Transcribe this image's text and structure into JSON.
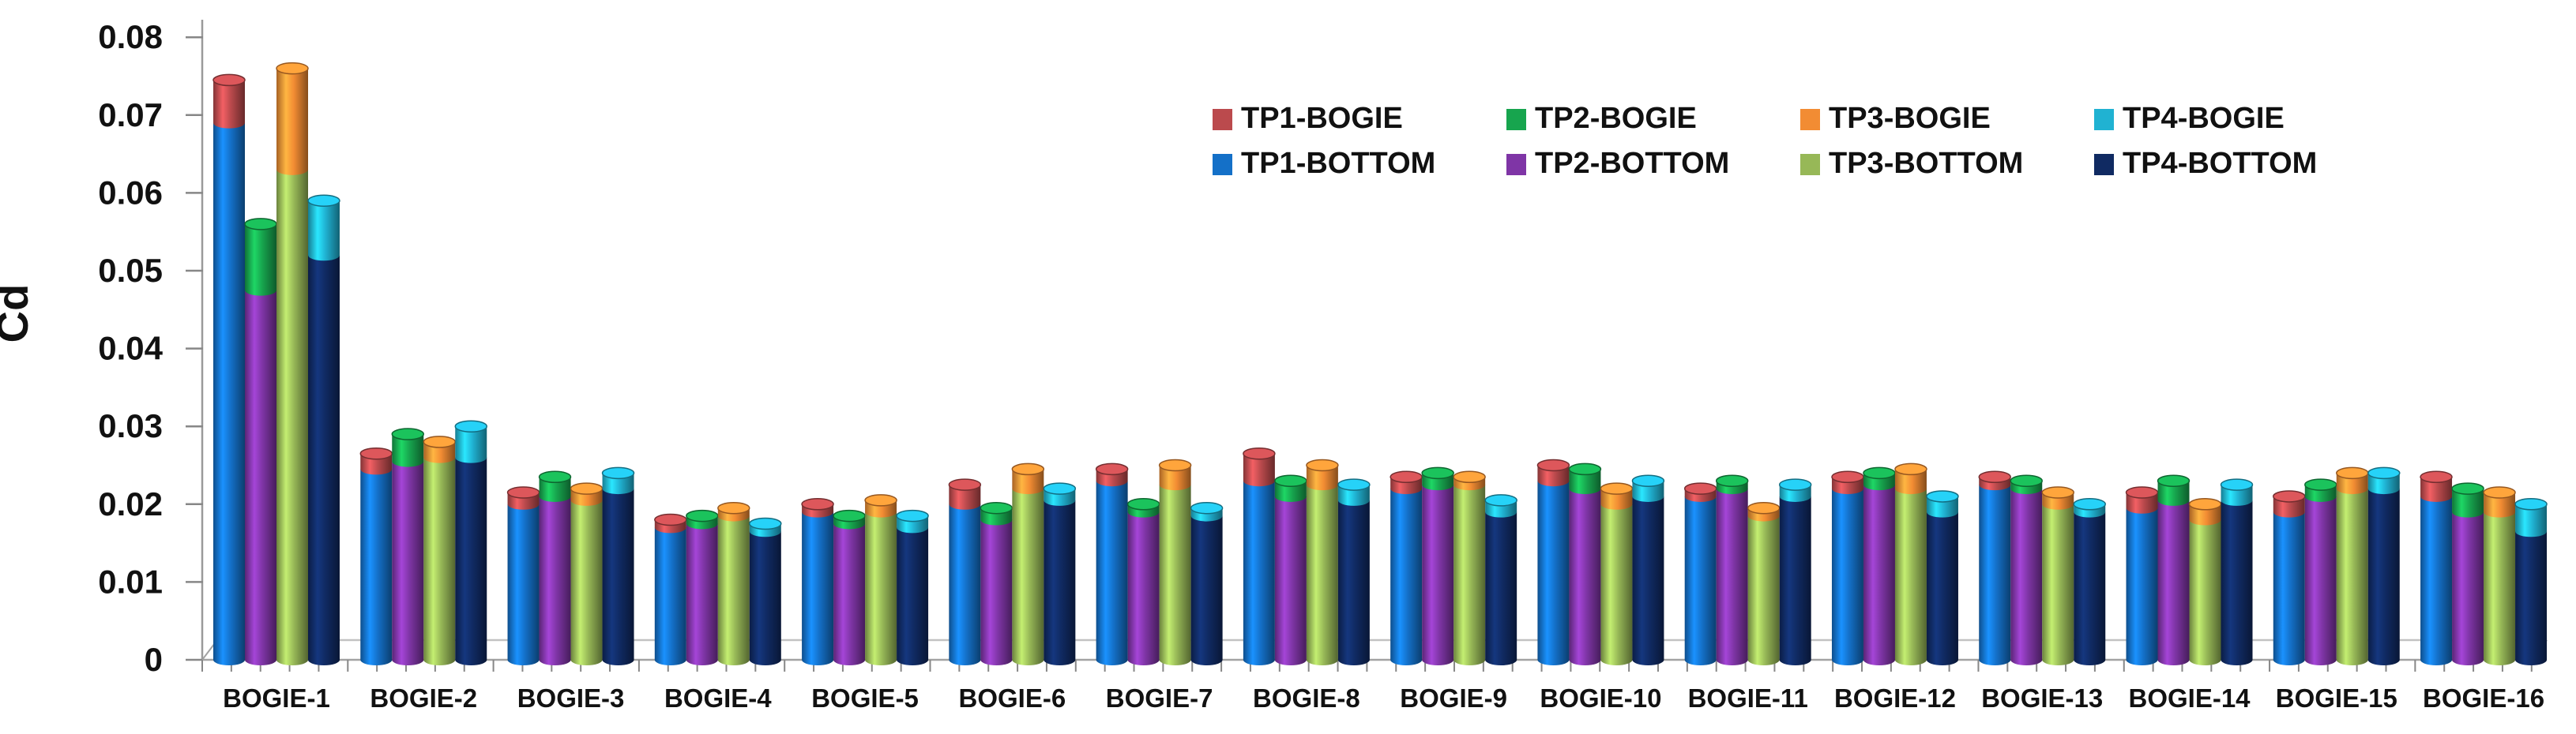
{
  "chart_data": {
    "type": "bar",
    "subtype": "3d-cylinder-stacked-clustered",
    "title": "",
    "xlabel": "",
    "ylabel": "Cd",
    "ylim": [
      0,
      0.08
    ],
    "ytick_labels": [
      "0",
      "0.01",
      "0.02",
      "0.03",
      "0.04",
      "0.05",
      "0.06",
      "0.07",
      "0.08"
    ],
    "grid": "off",
    "categories": [
      "BOGIE-1",
      "BOGIE-2",
      "BOGIE-3",
      "BOGIE-4",
      "BOGIE-5",
      "BOGIE-6",
      "BOGIE-7",
      "BOGIE-8",
      "BOGIE-9",
      "BOGIE-10",
      "BOGIE-11",
      "BOGIE-12",
      "BOGIE-13",
      "BOGIE-14",
      "BOGIE-15",
      "BOGIE-16"
    ],
    "stacking_note": "Each category shows 4 stacked cylinders (TP1..TP4). The *-BOTTOM series is the lower segment; the *-BOGIE series is the cap segment stacked on top (values are segment heights in Cd).",
    "legend": {
      "position": "top-right",
      "rows": [
        [
          "TP1-BOGIE",
          "TP2-BOGIE",
          "TP3-BOGIE",
          "TP4-BOGIE"
        ],
        [
          "TP1-BOTTOM",
          "TP2-BOTTOM",
          "TP3-BOTTOM",
          "TP4-BOTTOM"
        ]
      ]
    },
    "series": [
      {
        "name": "TP1-BOGIE",
        "pair": "TP1",
        "role": "top",
        "color": "#BB4A4D",
        "values": [
          0.0055,
          0.002,
          0.0015,
          0.001,
          0.001,
          0.0025,
          0.0015,
          0.0035,
          0.0015,
          0.002,
          0.001,
          0.0015,
          0.001,
          0.002,
          0.002,
          0.0025
        ]
      },
      {
        "name": "TP2-BOGIE",
        "pair": "TP2",
        "role": "top",
        "color": "#17A54E",
        "values": [
          0.0085,
          0.0035,
          0.0025,
          0.001,
          0.001,
          0.0015,
          0.001,
          0.002,
          0.0015,
          0.0025,
          0.001,
          0.0015,
          0.001,
          0.0025,
          0.0015,
          0.003
        ]
      },
      {
        "name": "TP3-BOGIE",
        "pair": "TP3",
        "role": "top",
        "color": "#F28C33",
        "values": [
          0.013,
          0.002,
          0.0015,
          0.001,
          0.0015,
          0.0025,
          0.0025,
          0.0025,
          0.001,
          0.002,
          0.001,
          0.0025,
          0.0015,
          0.002,
          0.002,
          0.0025
        ]
      },
      {
        "name": "TP4-BOGIE",
        "pair": "TP4",
        "role": "top",
        "color": "#20B2D2",
        "values": [
          0.007,
          0.004,
          0.002,
          0.001,
          0.0015,
          0.0015,
          0.001,
          0.002,
          0.0015,
          0.002,
          0.0015,
          0.002,
          0.001,
          0.002,
          0.002,
          0.0035
        ]
      },
      {
        "name": "TP1-BOTTOM",
        "pair": "TP1",
        "role": "bottom",
        "color": "#1470C8",
        "values": [
          0.069,
          0.0245,
          0.02,
          0.017,
          0.019,
          0.02,
          0.023,
          0.023,
          0.022,
          0.023,
          0.021,
          0.022,
          0.0225,
          0.0195,
          0.019,
          0.021
        ]
      },
      {
        "name": "TP2-BOTTOM",
        "pair": "TP2",
        "role": "bottom",
        "color": "#7F35A6",
        "values": [
          0.0475,
          0.0255,
          0.021,
          0.0175,
          0.0175,
          0.018,
          0.019,
          0.021,
          0.0225,
          0.022,
          0.022,
          0.0225,
          0.022,
          0.0205,
          0.021,
          0.019
        ]
      },
      {
        "name": "TP3-BOTTOM",
        "pair": "TP3",
        "role": "bottom",
        "color": "#97B857",
        "values": [
          0.063,
          0.026,
          0.0205,
          0.0185,
          0.019,
          0.022,
          0.0225,
          0.0225,
          0.0225,
          0.02,
          0.0185,
          0.022,
          0.02,
          0.018,
          0.022,
          0.019
        ]
      },
      {
        "name": "TP4-BOTTOM",
        "pair": "TP4",
        "role": "bottom",
        "color": "#102A62",
        "values": [
          0.052,
          0.026,
          0.022,
          0.0165,
          0.017,
          0.0205,
          0.0185,
          0.0205,
          0.019,
          0.021,
          0.021,
          0.019,
          0.019,
          0.0205,
          0.022,
          0.0165
        ]
      }
    ],
    "stack_order": [
      "TP1",
      "TP2",
      "TP3",
      "TP4"
    ],
    "axis_colors": {
      "axis_line": "#9a9a9a",
      "tick": "#878787",
      "floor_front": "#a2a2a2",
      "floor_back": "#c2c2c2",
      "label_text": "#111111"
    }
  }
}
